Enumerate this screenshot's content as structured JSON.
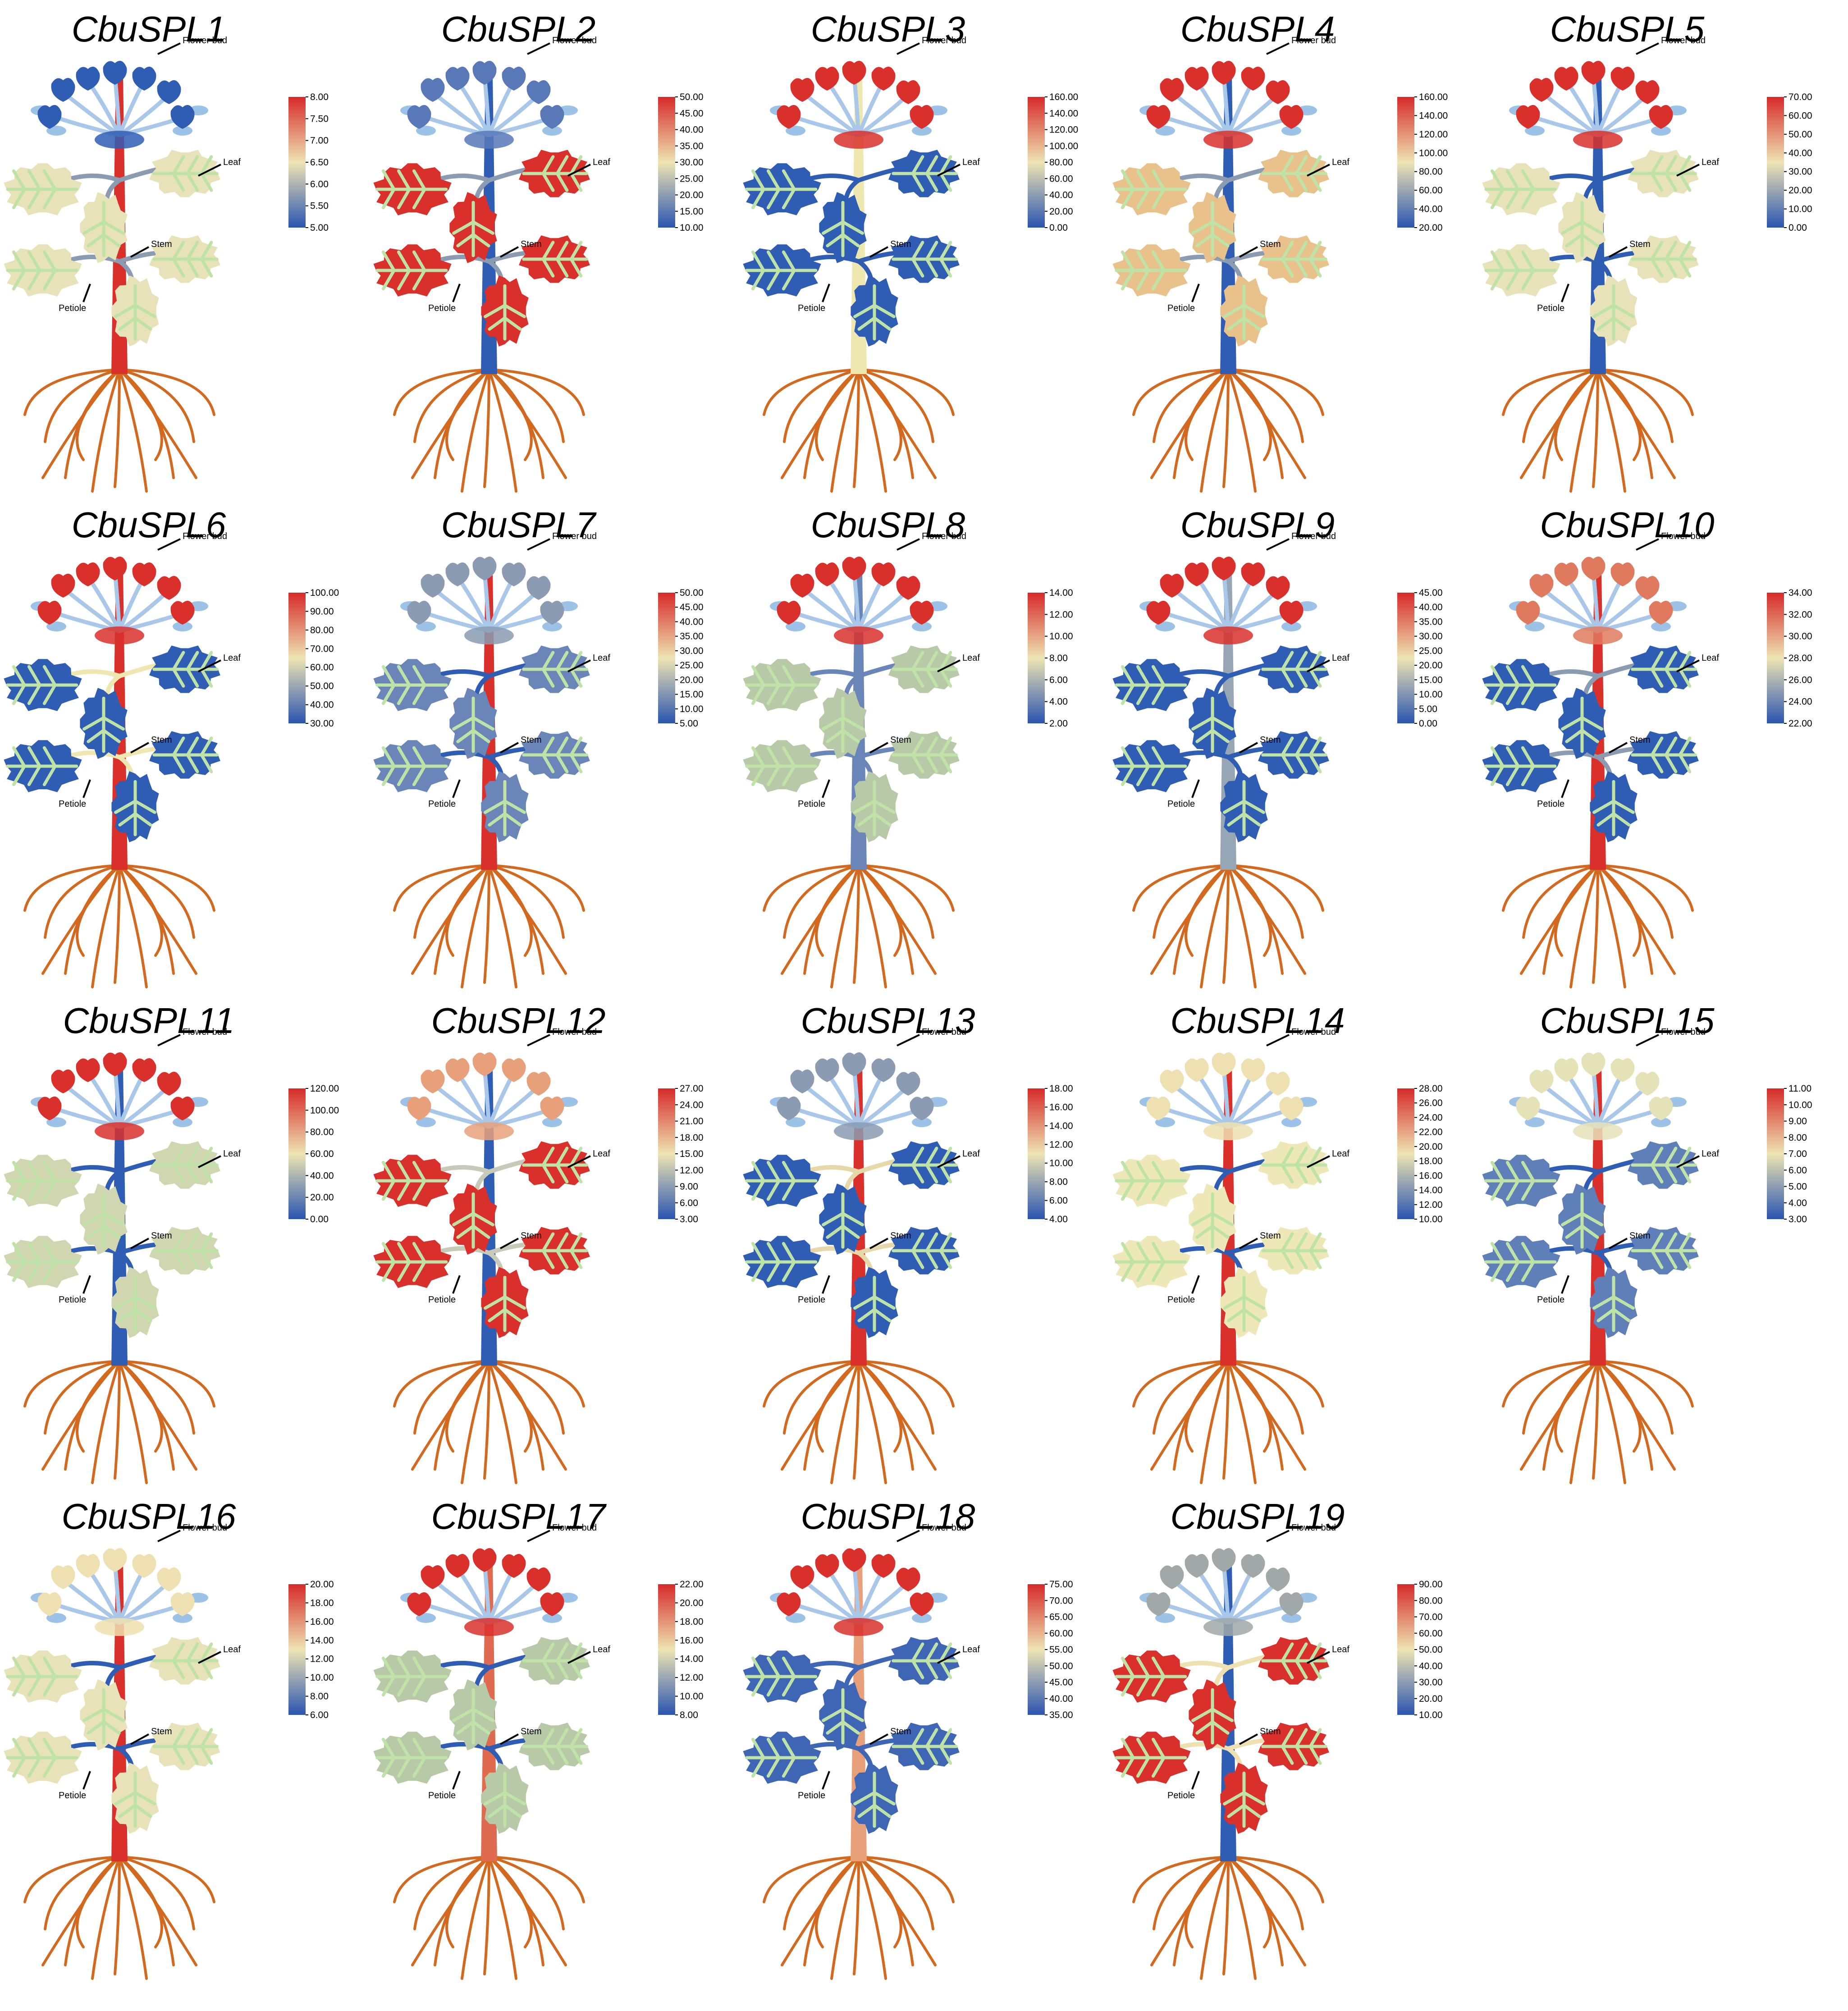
{
  "figure": {
    "organ_labels": {
      "flower_bud": "Flower bud",
      "leaf": "Leaf",
      "stem": "Stem",
      "petiole": "Petiole"
    },
    "palette": {
      "low": "#2b55b0",
      "mid": "#eee4b3",
      "high": "#d62a2a",
      "root": "#d2691e",
      "vein": "#bfe3a6"
    },
    "panels": [
      {
        "gene": "CbuSPL1",
        "ticks": [
          "8.00",
          "7.50",
          "7.00",
          "6.50",
          "6.00",
          "5.50",
          "5.00"
        ],
        "colors": {
          "bud": "#2f5db4",
          "leaf": "#e8e2b8",
          "stem": "#d9302c",
          "petiole": "#8a9bb2"
        }
      },
      {
        "gene": "CbuSPL2",
        "ticks": [
          "50.00",
          "45.00",
          "40.00",
          "35.00",
          "30.00",
          "25.00",
          "20.00",
          "15.00",
          "10.00"
        ],
        "colors": {
          "bud": "#5878b8",
          "leaf": "#d9302c",
          "stem": "#2f5db4",
          "petiole": "#8a9bb2"
        }
      },
      {
        "gene": "CbuSPL3",
        "ticks": [
          "160.00",
          "140.00",
          "120.00",
          "100.00",
          "80.00",
          "60.00",
          "40.00",
          "20.00",
          "0.00"
        ],
        "colors": {
          "bud": "#d9302c",
          "leaf": "#2f5db4",
          "stem": "#eee8b0",
          "petiole": "#2f5db4"
        }
      },
      {
        "gene": "CbuSPL4",
        "ticks": [
          "160.00",
          "140.00",
          "120.00",
          "100.00",
          "80.00",
          "60.00",
          "40.00",
          "20.00"
        ],
        "colors": {
          "bud": "#d9302c",
          "leaf": "#e8c28a",
          "stem": "#2f5db4",
          "petiole": "#8a9bb2"
        }
      },
      {
        "gene": "CbuSPL5",
        "ticks": [
          "70.00",
          "60.00",
          "50.00",
          "40.00",
          "30.00",
          "20.00",
          "10.00",
          "0.00"
        ],
        "colors": {
          "bud": "#d9302c",
          "leaf": "#e8e2b8",
          "stem": "#2f5db4",
          "petiole": "#2f5db4"
        }
      },
      {
        "gene": "CbuSPL6",
        "ticks": [
          "100.00",
          "90.00",
          "80.00",
          "70.00",
          "60.00",
          "50.00",
          "40.00",
          "30.00"
        ],
        "colors": {
          "bud": "#d9302c",
          "leaf": "#2f5db4",
          "stem": "#d9302c",
          "petiole": "#eee8b0"
        }
      },
      {
        "gene": "CbuSPL7",
        "ticks": [
          "50.00",
          "45.00",
          "40.00",
          "35.00",
          "30.00",
          "25.00",
          "20.00",
          "15.00",
          "10.00",
          "5.00"
        ],
        "colors": {
          "bud": "#8a9bb2",
          "leaf": "#6a86b8",
          "stem": "#d9302c",
          "petiole": "#2f5db4"
        }
      },
      {
        "gene": "CbuSPL8",
        "ticks": [
          "14.00",
          "12.00",
          "10.00",
          "8.00",
          "6.00",
          "4.00",
          "2.00"
        ],
        "colors": {
          "bud": "#d9302c",
          "leaf": "#b8c9a8",
          "stem": "#6a86b8",
          "petiole": "#6a86b8"
        }
      },
      {
        "gene": "CbuSPL9",
        "ticks": [
          "45.00",
          "40.00",
          "35.00",
          "30.00",
          "25.00",
          "20.00",
          "15.00",
          "10.00",
          "5.00",
          "0.00"
        ],
        "colors": {
          "bud": "#d9302c",
          "leaf": "#2f5db4",
          "stem": "#97a6b4",
          "petiole": "#2f5db4"
        }
      },
      {
        "gene": "CbuSPL10",
        "ticks": [
          "34.00",
          "32.00",
          "30.00",
          "28.00",
          "26.00",
          "24.00",
          "22.00"
        ],
        "colors": {
          "bud": "#e07a5e",
          "leaf": "#2f5db4",
          "stem": "#d9302c",
          "petiole": "#8a9bb2"
        }
      },
      {
        "gene": "CbuSPL11",
        "ticks": [
          "120.00",
          "100.00",
          "80.00",
          "60.00",
          "40.00",
          "20.00",
          "0.00"
        ],
        "colors": {
          "bud": "#d9302c",
          "leaf": "#cfd6b0",
          "stem": "#2f5db4",
          "petiole": "#2f5db4"
        }
      },
      {
        "gene": "CbuSPL12",
        "ticks": [
          "27.00",
          "24.00",
          "21.00",
          "18.00",
          "15.00",
          "12.00",
          "9.00",
          "6.00",
          "3.00"
        ],
        "colors": {
          "bud": "#e8a07a",
          "leaf": "#d9302c",
          "stem": "#2f5db4",
          "petiole": "#c9c9b8"
        }
      },
      {
        "gene": "CbuSPL13",
        "ticks": [
          "18.00",
          "16.00",
          "14.00",
          "12.00",
          "10.00",
          "8.00",
          "6.00",
          "4.00"
        ],
        "colors": {
          "bud": "#8a9bb2",
          "leaf": "#2f5db4",
          "stem": "#d9302c",
          "petiole": "#e6d8a8"
        }
      },
      {
        "gene": "CbuSPL14",
        "ticks": [
          "28.00",
          "26.00",
          "24.00",
          "22.00",
          "20.00",
          "18.00",
          "16.00",
          "14.00",
          "12.00",
          "10.00"
        ],
        "colors": {
          "bud": "#eee0b0",
          "leaf": "#eee8b8",
          "stem": "#d9302c",
          "petiole": "#2f5db4"
        }
      },
      {
        "gene": "CbuSPL15",
        "ticks": [
          "11.00",
          "10.00",
          "9.00",
          "8.00",
          "7.00",
          "6.00",
          "5.00",
          "4.00",
          "3.00"
        ],
        "colors": {
          "bud": "#e6e2b8",
          "leaf": "#5f7fb8",
          "stem": "#d9302c",
          "petiole": "#2f5db4"
        }
      },
      {
        "gene": "CbuSPL16",
        "ticks": [
          "20.00",
          "18.00",
          "16.00",
          "14.00",
          "12.00",
          "10.00",
          "8.00",
          "6.00"
        ],
        "colors": {
          "bud": "#eee0b0",
          "leaf": "#e8e2b8",
          "stem": "#d9302c",
          "petiole": "#2f5db4"
        }
      },
      {
        "gene": "CbuSPL17",
        "ticks": [
          "22.00",
          "20.00",
          "18.00",
          "16.00",
          "14.00",
          "12.00",
          "10.00",
          "8.00"
        ],
        "colors": {
          "bud": "#d9302c",
          "leaf": "#b8c9a8",
          "stem": "#e06a50",
          "petiole": "#2f5db4"
        }
      },
      {
        "gene": "CbuSPL18",
        "ticks": [
          "75.00",
          "70.00",
          "65.00",
          "60.00",
          "55.00",
          "50.00",
          "45.00",
          "40.00",
          "35.00"
        ],
        "colors": {
          "bud": "#d9302c",
          "leaf": "#3f66b4",
          "stem": "#e8a07a",
          "petiole": "#3f66b4"
        }
      },
      {
        "gene": "CbuSPL19",
        "ticks": [
          "90.00",
          "80.00",
          "70.00",
          "60.00",
          "50.00",
          "40.00",
          "30.00",
          "20.00",
          "10.00"
        ],
        "colors": {
          "bud": "#a0a8a8",
          "leaf": "#d9302c",
          "stem": "#2f5db4",
          "petiole": "#eee0b0"
        }
      }
    ]
  }
}
